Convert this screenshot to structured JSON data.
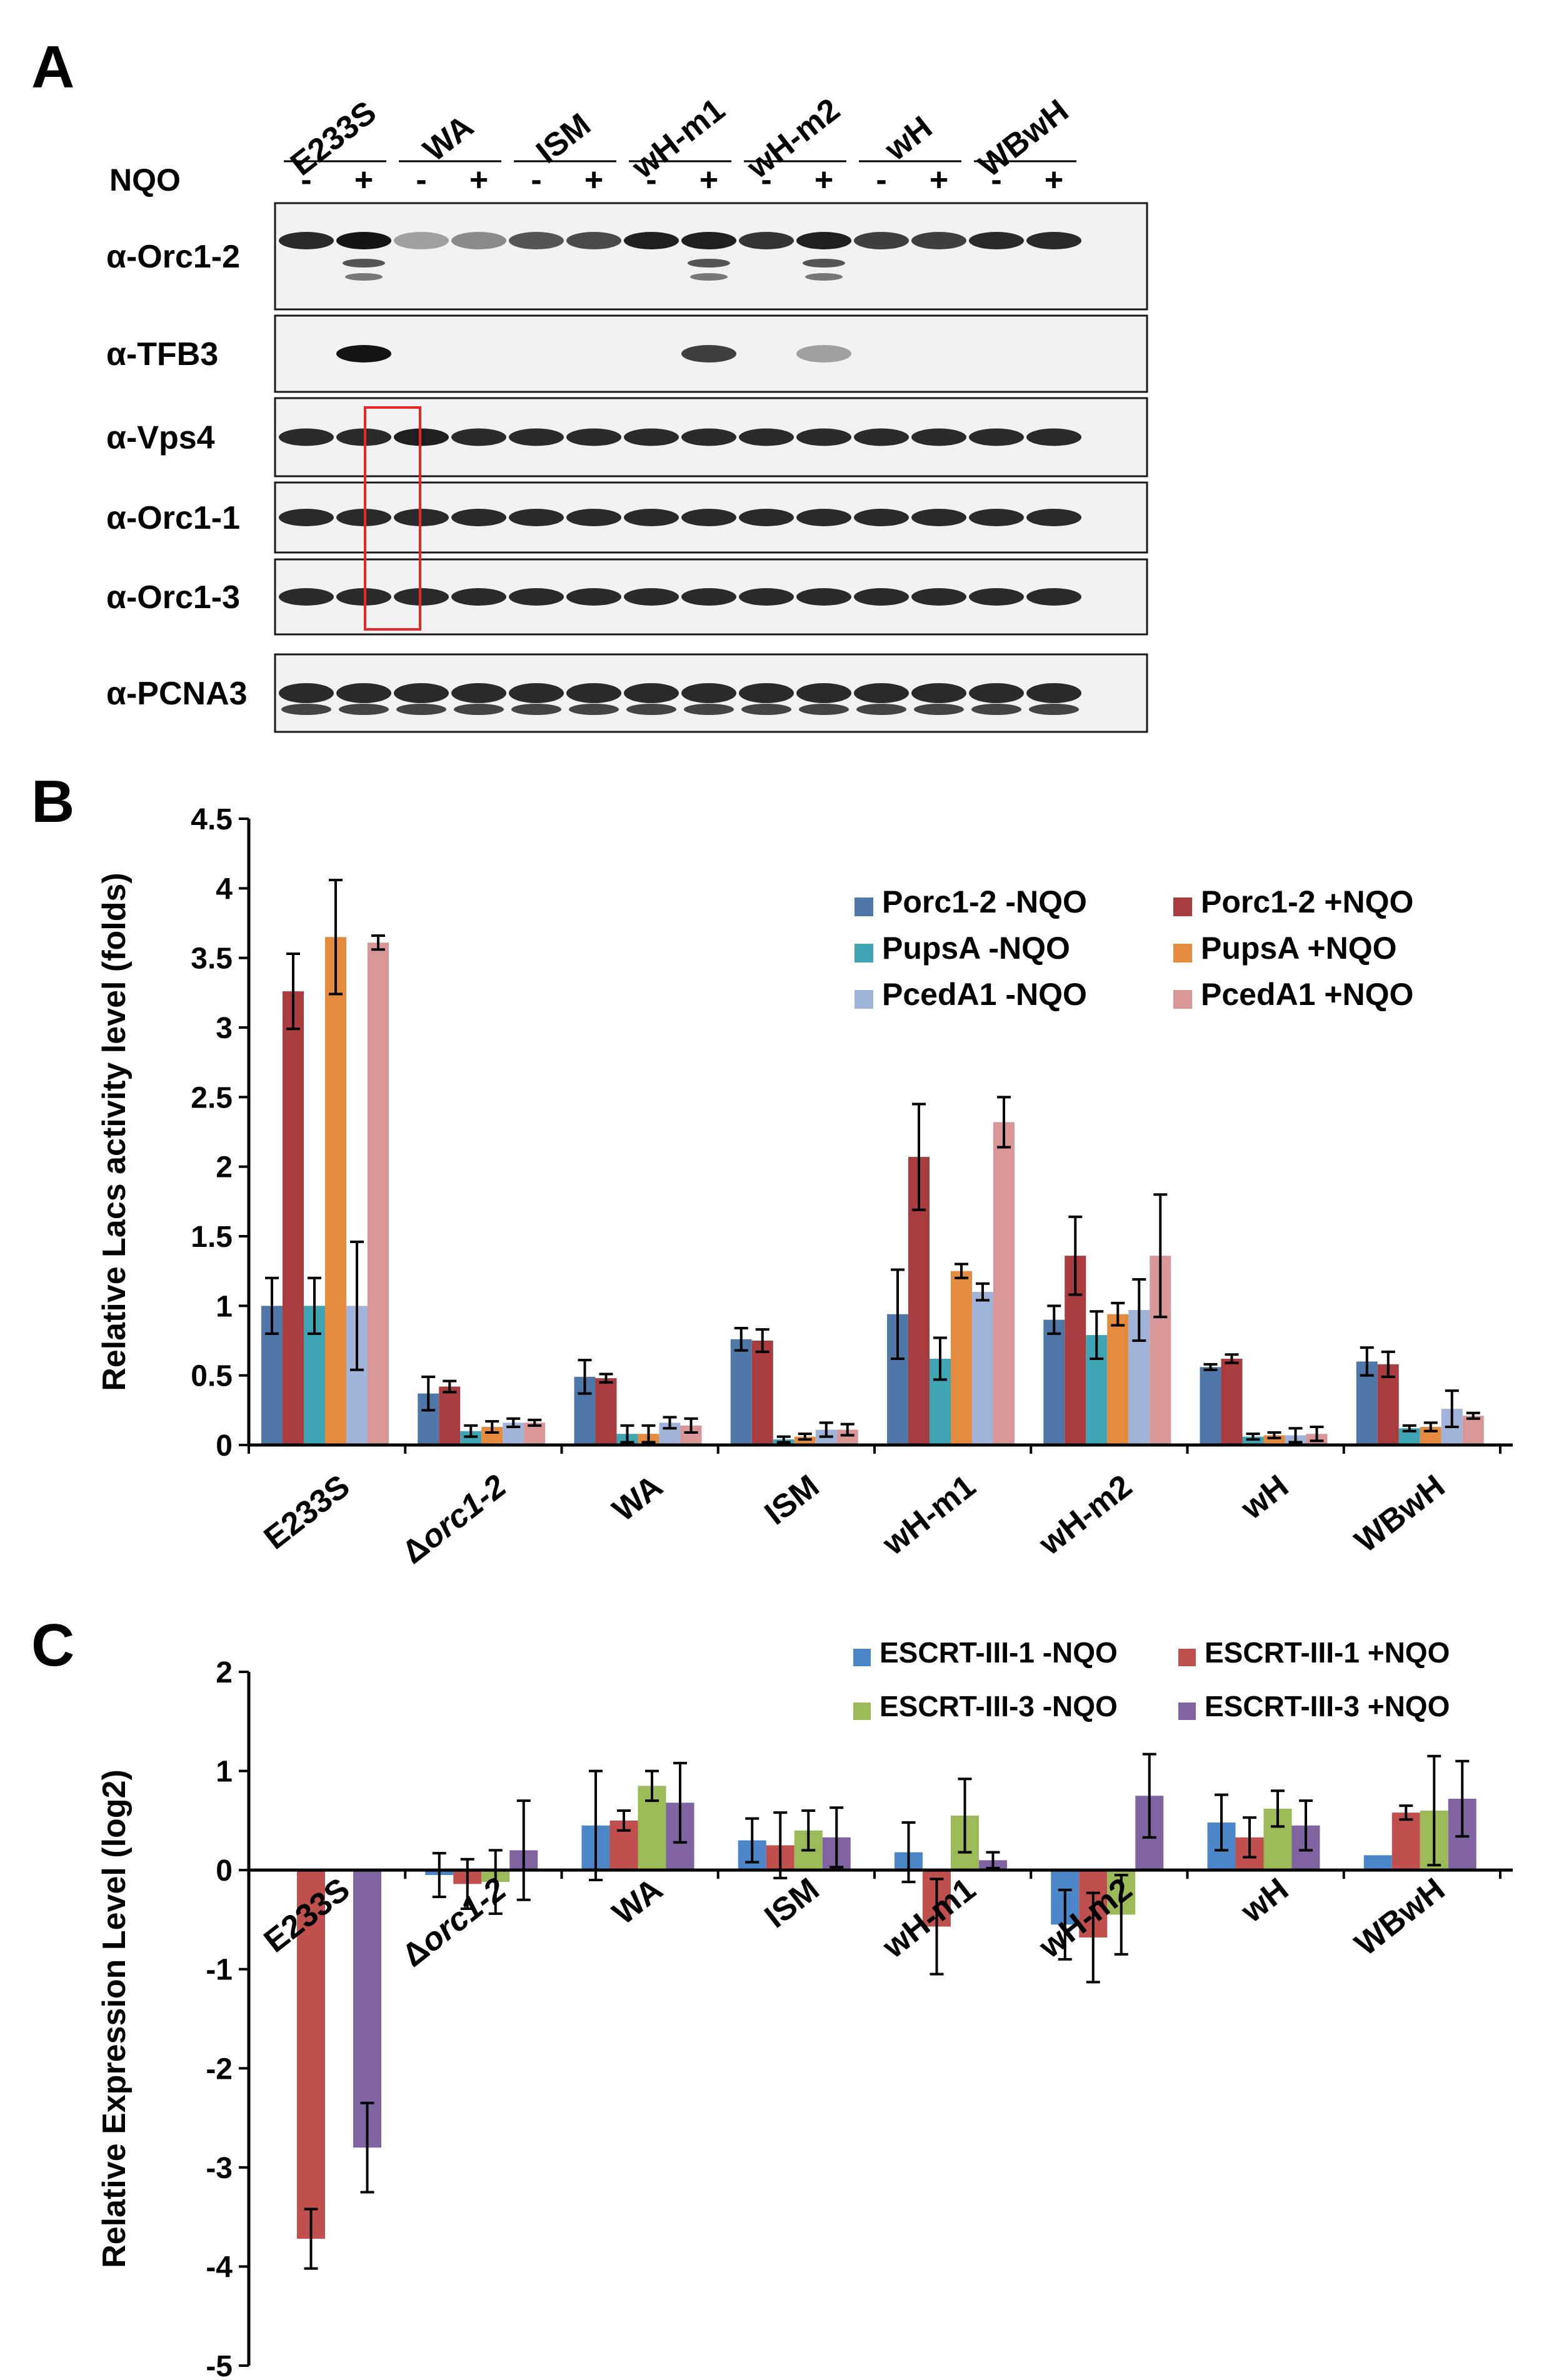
{
  "panels": {
    "A": "A",
    "B": "B",
    "C": "C"
  },
  "colors": {
    "blue": "#4f78a8",
    "red": "#a83c3e",
    "teal": "#3fa5b4",
    "orange": "#e48b3e",
    "lightblue": "#9fb4d8",
    "pink": "#d99697",
    "c_blue": "#4a86c8",
    "c_red": "#c0504d",
    "c_green": "#9bbb59",
    "c_purple": "#8064a2",
    "box_red": "#e8262a"
  },
  "blot": {
    "strains": [
      "E233S",
      "WA",
      "ISM",
      "wH-m1",
      "wH-m2",
      "wH",
      "WBwH"
    ],
    "treatment_label": "NQO",
    "lane_signs": [
      "-",
      "+",
      "-",
      "+",
      "-",
      "+",
      "-",
      "+",
      "-",
      "+",
      "-",
      "+",
      "-",
      "+"
    ],
    "antibodies": [
      "α-Orc1-2",
      "α-TFB3",
      "α-Vps4",
      "α-Orc1-1",
      "α-Orc1-3",
      "α-PCNA3"
    ],
    "band_intensity": [
      [
        0.9,
        1.0,
        0.35,
        0.45,
        0.7,
        0.75,
        0.95,
        0.95,
        0.85,
        0.95,
        0.8,
        0.8,
        0.9,
        0.9
      ],
      [
        0,
        1.0,
        0,
        0,
        0,
        0,
        0,
        0.8,
        0,
        0.35,
        0,
        0,
        0,
        0
      ],
      [
        0.9,
        0.9,
        0.95,
        0.9,
        0.9,
        0.9,
        0.9,
        0.9,
        0.9,
        0.9,
        0.9,
        0.9,
        0.9,
        0.9
      ],
      [
        0.9,
        0.9,
        0.9,
        0.9,
        0.9,
        0.9,
        0.9,
        0.9,
        0.9,
        0.9,
        0.9,
        0.9,
        0.9,
        0.9
      ],
      [
        0.9,
        0.9,
        0.9,
        0.9,
        0.9,
        0.9,
        0.9,
        0.9,
        0.9,
        0.9,
        0.9,
        0.9,
        0.9,
        0.9
      ],
      [
        0.9,
        0.9,
        0.9,
        0.9,
        0.9,
        0.9,
        0.9,
        0.9,
        0.9,
        0.9,
        0.9,
        0.9,
        0.9,
        0.9
      ]
    ]
  },
  "chart_data": [
    {
      "type": "bar",
      "panel": "B",
      "ylabel": "Relative Lacs activity level (folds)",
      "ylim": [
        0,
        4.5
      ],
      "yticks": [
        "0",
        "0.5",
        "1",
        "1.5",
        "2",
        "2.5",
        "3",
        "3.5",
        "4",
        "4.5"
      ],
      "categories": [
        "E233S",
        "Δorc1-2",
        "WA",
        "ISM",
        "wH-m1",
        "wH-m2",
        "wH",
        "WBwH"
      ],
      "legend_position": "top-right",
      "series": [
        {
          "name": "Porc1-2 -NQO",
          "color": "#4f78a8",
          "values": [
            1.0,
            0.37,
            0.49,
            0.76,
            0.94,
            0.9,
            0.56,
            0.6
          ],
          "errors": [
            0.2,
            0.12,
            0.12,
            0.08,
            0.32,
            0.1,
            0.02,
            0.1
          ]
        },
        {
          "name": "Porc1-2 +NQO",
          "color": "#a83c3e",
          "values": [
            3.26,
            0.42,
            0.48,
            0.75,
            2.07,
            1.36,
            0.62,
            0.58
          ],
          "errors": [
            0.27,
            0.04,
            0.03,
            0.08,
            0.38,
            0.28,
            0.03,
            0.09
          ]
        },
        {
          "name": "PupsA -NQO",
          "color": "#3fa5b4",
          "values": [
            1.0,
            0.1,
            0.08,
            0.04,
            0.62,
            0.79,
            0.06,
            0.12
          ],
          "errors": [
            0.2,
            0.04,
            0.06,
            0.02,
            0.15,
            0.17,
            0.02,
            0.02
          ]
        },
        {
          "name": "PupsA +NQO",
          "color": "#e48b3e",
          "values": [
            3.65,
            0.13,
            0.08,
            0.06,
            1.25,
            0.94,
            0.07,
            0.13
          ],
          "errors": [
            0.41,
            0.04,
            0.06,
            0.02,
            0.05,
            0.08,
            0.02,
            0.03
          ]
        },
        {
          "name": "PcedA1 -NQO",
          "color": "#9fb4d8",
          "values": [
            1.0,
            0.16,
            0.16,
            0.11,
            1.1,
            0.97,
            0.07,
            0.26
          ],
          "errors": [
            0.46,
            0.03,
            0.04,
            0.05,
            0.06,
            0.22,
            0.05,
            0.13
          ]
        },
        {
          "name": "PcedA1 +NQO",
          "color": "#d99697",
          "values": [
            3.61,
            0.16,
            0.14,
            0.11,
            2.32,
            1.36,
            0.08,
            0.21
          ],
          "errors": [
            0.05,
            0.02,
            0.05,
            0.04,
            0.18,
            0.44,
            0.05,
            0.02
          ]
        }
      ]
    },
    {
      "type": "bar",
      "panel": "C",
      "ylabel": "Relative Expression Level (log2)",
      "ylim": [
        -5,
        2
      ],
      "yticks": [
        "2",
        "1",
        "0",
        "-1",
        "-2",
        "-3",
        "-4",
        "-5"
      ],
      "categories": [
        "E233S",
        "Δorc1-2",
        "WA",
        "ISM",
        "wH-m1",
        "wH-m2",
        "wH",
        "WBwH"
      ],
      "legend_position": "top-right",
      "series": [
        {
          "name": "ESCRT-III-1 -NQO",
          "color": "#4a86c8",
          "values": [
            null,
            -0.05,
            0.45,
            0.3,
            0.18,
            -0.55,
            0.48,
            0.15
          ],
          "errors": [
            null,
            0.22,
            0.55,
            0.22,
            0.3,
            0.35,
            0.28,
            0.0
          ]
        },
        {
          "name": "ESCRT-III-1 +NQO",
          "color": "#c0504d",
          "values": [
            -3.72,
            -0.14,
            0.5,
            0.25,
            -0.57,
            -0.68,
            0.33,
            0.58
          ],
          "errors": [
            0.3,
            0.25,
            0.1,
            0.33,
            0.48,
            0.45,
            0.2,
            0.07
          ]
        },
        {
          "name": "ESCRT-III-3 -NQO",
          "color": "#9bbb59",
          "values": [
            null,
            -0.12,
            0.85,
            0.4,
            0.55,
            -0.45,
            0.62,
            0.6
          ],
          "errors": [
            null,
            0.32,
            0.15,
            0.2,
            0.37,
            0.4,
            0.18,
            0.55
          ]
        },
        {
          "name": "ESCRT-III-3 +NQO",
          "color": "#8064a2",
          "values": [
            -2.8,
            0.2,
            0.68,
            0.33,
            0.1,
            0.75,
            0.45,
            0.72
          ],
          "errors": [
            0.45,
            0.5,
            0.4,
            0.3,
            0.08,
            0.42,
            0.25,
            0.38
          ]
        }
      ]
    }
  ]
}
